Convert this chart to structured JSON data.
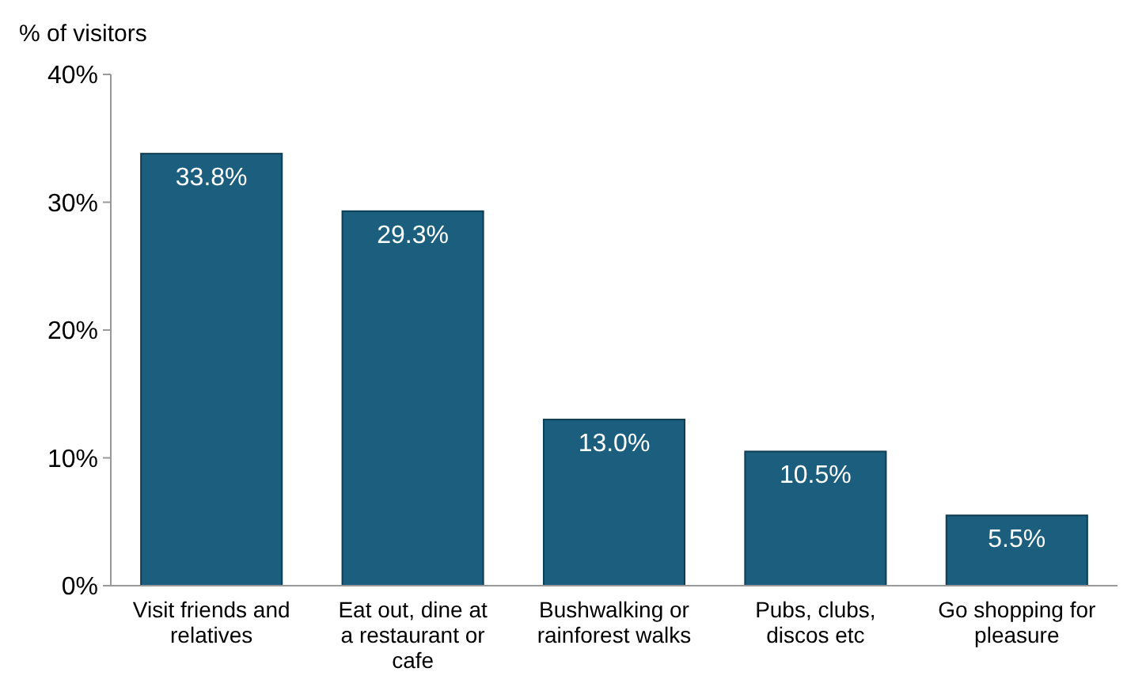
{
  "chart_data": {
    "type": "bar",
    "ylabel": "% of visitors",
    "categories": [
      "Visit friends and relatives",
      "Eat out, dine at a restaurant or cafe",
      "Bushwalking or rainforest walks",
      "Pubs, clubs, discos etc",
      "Go shopping for pleasure"
    ],
    "values": [
      33.8,
      29.3,
      13.0,
      10.5,
      5.5
    ],
    "value_labels": [
      "33.8%",
      "29.3%",
      "13.0%",
      "10.5%",
      "5.5%"
    ],
    "color": "#1b5e7e",
    "ylim": [
      0,
      40
    ],
    "yticks": [
      {
        "value": 0,
        "label": "0%"
      },
      {
        "value": 10,
        "label": "10%"
      },
      {
        "value": 20,
        "label": "20%"
      },
      {
        "value": 30,
        "label": "30%"
      },
      {
        "value": 40,
        "label": "40%"
      }
    ],
    "grid": false
  }
}
